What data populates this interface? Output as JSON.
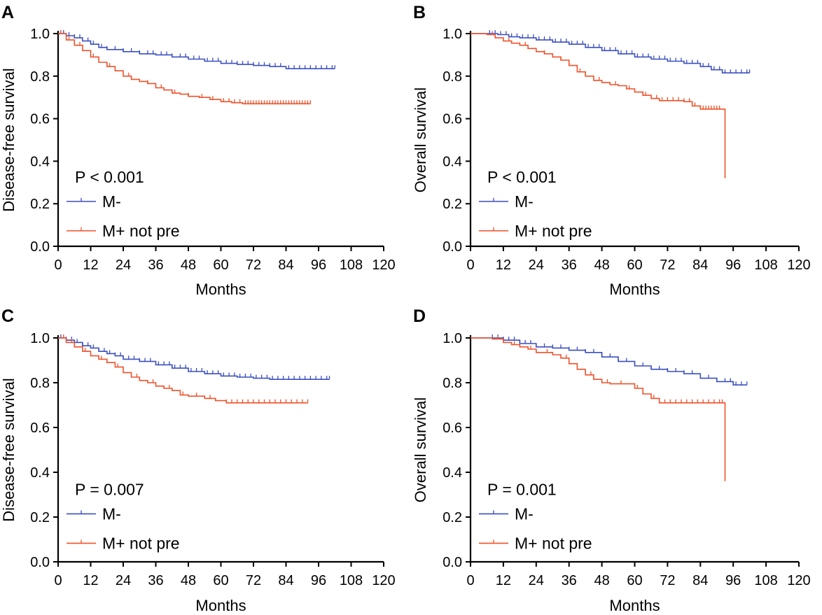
{
  "colors": {
    "m_minus": "#3b4fbf",
    "m_plus": "#f0512a",
    "axis": "#000000"
  },
  "chart_data": [
    {
      "panel": "A",
      "type": "line",
      "title": "",
      "xlabel": "Months",
      "ylabel": "Disease-free survival",
      "xlim": [
        0,
        120
      ],
      "ylim": [
        0.0,
        1.0
      ],
      "xticks": [
        "0",
        "12",
        "24",
        "36",
        "48",
        "60",
        "72",
        "84",
        "96",
        "108",
        "120"
      ],
      "yticks": [
        "0.0",
        "0.2",
        "0.4",
        "0.6",
        "0.8",
        "1.0"
      ],
      "pvalue": "P < 0.001",
      "legend": [
        "M-",
        "M+ not pre"
      ],
      "series": [
        {
          "name": "M-",
          "color": "#3b4fbf",
          "points": [
            [
              0,
              1.0
            ],
            [
              3,
              0.99
            ],
            [
              6,
              0.98
            ],
            [
              9,
              0.965
            ],
            [
              12,
              0.95
            ],
            [
              15,
              0.935
            ],
            [
              18,
              0.925
            ],
            [
              24,
              0.915
            ],
            [
              30,
              0.905
            ],
            [
              36,
              0.9
            ],
            [
              42,
              0.89
            ],
            [
              48,
              0.88
            ],
            [
              54,
              0.87
            ],
            [
              60,
              0.86
            ],
            [
              66,
              0.855
            ],
            [
              72,
              0.85
            ],
            [
              78,
              0.845
            ],
            [
              84,
              0.835
            ],
            [
              90,
              0.835
            ],
            [
              102,
              0.835
            ]
          ],
          "censor": [
            1,
            2,
            4,
            6,
            8,
            11,
            13,
            16,
            18,
            21,
            24,
            27,
            30,
            33,
            35,
            38,
            40,
            42,
            45,
            47,
            50,
            52,
            55,
            57,
            59,
            62,
            64,
            66,
            68,
            70,
            72,
            74,
            76,
            78,
            80,
            82,
            85,
            87,
            89,
            91,
            93,
            95,
            97,
            99,
            101,
            102
          ]
        },
        {
          "name": "M+ not pre",
          "color": "#f0512a",
          "points": [
            [
              0,
              1.0
            ],
            [
              3,
              0.97
            ],
            [
              6,
              0.945
            ],
            [
              9,
              0.92
            ],
            [
              12,
              0.89
            ],
            [
              15,
              0.865
            ],
            [
              18,
              0.845
            ],
            [
              21,
              0.825
            ],
            [
              24,
              0.8
            ],
            [
              27,
              0.785
            ],
            [
              30,
              0.775
            ],
            [
              33,
              0.765
            ],
            [
              36,
              0.745
            ],
            [
              39,
              0.735
            ],
            [
              42,
              0.72
            ],
            [
              45,
              0.715
            ],
            [
              48,
              0.705
            ],
            [
              52,
              0.7
            ],
            [
              56,
              0.69
            ],
            [
              60,
              0.68
            ],
            [
              64,
              0.675
            ],
            [
              68,
              0.67
            ],
            [
              93,
              0.67
            ]
          ],
          "censor": [
            1,
            4,
            8,
            13,
            19,
            26,
            33,
            38,
            43,
            48,
            53,
            57,
            61,
            63,
            65,
            67,
            69,
            70,
            71,
            72,
            73,
            74,
            75,
            76,
            77,
            78,
            79,
            80,
            81,
            82,
            83,
            84,
            85,
            86,
            87,
            88,
            89,
            90,
            91,
            92,
            93
          ]
        }
      ]
    },
    {
      "panel": "B",
      "type": "line",
      "title": "",
      "xlabel": "Months",
      "ylabel": "Overall survival",
      "xlim": [
        0,
        120
      ],
      "ylim": [
        0.0,
        1.0
      ],
      "xticks": [
        "0",
        "12",
        "24",
        "36",
        "48",
        "60",
        "72",
        "84",
        "96",
        "108",
        "120"
      ],
      "yticks": [
        "0.0",
        "0.2",
        "0.4",
        "0.6",
        "0.8",
        "1.0"
      ],
      "pvalue": "P < 0.001",
      "legend": [
        "M-",
        "M+ not pre"
      ],
      "series": [
        {
          "name": "M-",
          "color": "#3b4fbf",
          "points": [
            [
              0,
              1.0
            ],
            [
              6,
              1.0
            ],
            [
              10,
              0.995
            ],
            [
              14,
              0.985
            ],
            [
              18,
              0.98
            ],
            [
              24,
              0.97
            ],
            [
              30,
              0.96
            ],
            [
              36,
              0.95
            ],
            [
              42,
              0.935
            ],
            [
              48,
              0.92
            ],
            [
              54,
              0.905
            ],
            [
              60,
              0.89
            ],
            [
              66,
              0.88
            ],
            [
              72,
              0.87
            ],
            [
              78,
              0.86
            ],
            [
              84,
              0.845
            ],
            [
              88,
              0.83
            ],
            [
              92,
              0.815
            ],
            [
              102,
              0.815
            ]
          ],
          "censor": [
            7,
            9,
            11,
            13,
            15,
            17,
            19,
            21,
            23,
            25,
            27,
            29,
            31,
            33,
            35,
            37,
            39,
            41,
            43,
            45,
            47,
            49,
            51,
            53,
            55,
            57,
            59,
            61,
            63,
            65,
            67,
            69,
            71,
            73,
            75,
            77,
            79,
            81,
            83,
            85,
            87,
            89,
            91,
            93,
            95,
            97,
            99,
            101,
            102
          ]
        },
        {
          "name": "M+ not pre",
          "color": "#f0512a",
          "points": [
            [
              0,
              1.0
            ],
            [
              6,
              0.995
            ],
            [
              9,
              0.98
            ],
            [
              12,
              0.965
            ],
            [
              15,
              0.955
            ],
            [
              18,
              0.945
            ],
            [
              21,
              0.93
            ],
            [
              24,
              0.915
            ],
            [
              27,
              0.905
            ],
            [
              30,
              0.89
            ],
            [
              33,
              0.875
            ],
            [
              36,
              0.85
            ],
            [
              39,
              0.82
            ],
            [
              42,
              0.8
            ],
            [
              45,
              0.78
            ],
            [
              48,
              0.77
            ],
            [
              51,
              0.76
            ],
            [
              54,
              0.755
            ],
            [
              57,
              0.74
            ],
            [
              60,
              0.725
            ],
            [
              63,
              0.71
            ],
            [
              66,
              0.695
            ],
            [
              69,
              0.685
            ],
            [
              78,
              0.68
            ],
            [
              81,
              0.66
            ],
            [
              84,
              0.645
            ],
            [
              93,
              0.64
            ],
            [
              93,
              0.32
            ]
          ],
          "censor": [
            8,
            14,
            20,
            27,
            33,
            40,
            47,
            53,
            58,
            64,
            68,
            70,
            72,
            74,
            76,
            78,
            80,
            82,
            84,
            85,
            86,
            87,
            88,
            89,
            90,
            91
          ]
        }
      ]
    },
    {
      "panel": "C",
      "type": "line",
      "title": "",
      "xlabel": "Months",
      "ylabel": "Disease-free survival",
      "xlim": [
        0,
        120
      ],
      "ylim": [
        0.0,
        1.0
      ],
      "xticks": [
        "0",
        "12",
        "24",
        "36",
        "48",
        "60",
        "72",
        "84",
        "96",
        "108",
        "120"
      ],
      "yticks": [
        "0.0",
        "0.2",
        "0.4",
        "0.6",
        "0.8",
        "1.0"
      ],
      "pvalue": "P = 0.007",
      "legend": [
        "M-",
        "M+ not pre"
      ],
      "series": [
        {
          "name": "M-",
          "color": "#3b4fbf",
          "points": [
            [
              0,
              1.0
            ],
            [
              3,
              0.99
            ],
            [
              6,
              0.98
            ],
            [
              9,
              0.965
            ],
            [
              12,
              0.955
            ],
            [
              15,
              0.94
            ],
            [
              18,
              0.93
            ],
            [
              21,
              0.92
            ],
            [
              24,
              0.905
            ],
            [
              30,
              0.895
            ],
            [
              36,
              0.88
            ],
            [
              42,
              0.865
            ],
            [
              48,
              0.85
            ],
            [
              54,
              0.84
            ],
            [
              60,
              0.83
            ],
            [
              66,
              0.825
            ],
            [
              72,
              0.82
            ],
            [
              78,
              0.815
            ],
            [
              84,
              0.815
            ],
            [
              100,
              0.815
            ]
          ],
          "censor": [
            1,
            3,
            5,
            7,
            9,
            11,
            13,
            15,
            17,
            19,
            21,
            23,
            26,
            28,
            30,
            32,
            34,
            37,
            39,
            41,
            43,
            45,
            47,
            49,
            51,
            53,
            55,
            57,
            59,
            61,
            63,
            65,
            67,
            69,
            71,
            73,
            75,
            77,
            79,
            81,
            83,
            85,
            87,
            89,
            91,
            93,
            95,
            97,
            99,
            100
          ]
        },
        {
          "name": "M+ not pre",
          "color": "#f0512a",
          "points": [
            [
              0,
              1.0
            ],
            [
              3,
              0.98
            ],
            [
              6,
              0.96
            ],
            [
              9,
              0.94
            ],
            [
              12,
              0.92
            ],
            [
              15,
              0.905
            ],
            [
              18,
              0.89
            ],
            [
              21,
              0.87
            ],
            [
              24,
              0.845
            ],
            [
              27,
              0.825
            ],
            [
              30,
              0.81
            ],
            [
              33,
              0.8
            ],
            [
              36,
              0.785
            ],
            [
              39,
              0.775
            ],
            [
              42,
              0.765
            ],
            [
              45,
              0.745
            ],
            [
              48,
              0.74
            ],
            [
              54,
              0.73
            ],
            [
              58,
              0.72
            ],
            [
              62,
              0.71
            ],
            [
              92,
              0.71
            ]
          ],
          "censor": [
            2,
            5,
            10,
            16,
            22,
            29,
            35,
            41,
            46,
            51,
            56,
            62,
            64,
            66,
            68,
            70,
            72,
            74,
            76,
            78,
            80,
            82,
            84,
            86,
            88,
            90,
            92
          ]
        }
      ]
    },
    {
      "panel": "D",
      "type": "line",
      "title": "",
      "xlabel": "Months",
      "ylabel": "Overall survival",
      "xlim": [
        0,
        120
      ],
      "ylim": [
        0.0,
        1.0
      ],
      "xticks": [
        "0",
        "12",
        "24",
        "36",
        "48",
        "60",
        "72",
        "84",
        "96",
        "108",
        "120"
      ],
      "yticks": [
        "0.0",
        "0.2",
        "0.4",
        "0.6",
        "0.8",
        "1.0"
      ],
      "pvalue": "P = 0.001",
      "legend": [
        "M-",
        "M+ not pre"
      ],
      "series": [
        {
          "name": "M-",
          "color": "#3b4fbf",
          "points": [
            [
              0,
              1.0
            ],
            [
              8,
              1.0
            ],
            [
              12,
              0.99
            ],
            [
              18,
              0.975
            ],
            [
              24,
              0.96
            ],
            [
              30,
              0.955
            ],
            [
              36,
              0.945
            ],
            [
              42,
              0.935
            ],
            [
              48,
              0.915
            ],
            [
              54,
              0.895
            ],
            [
              60,
              0.875
            ],
            [
              66,
              0.86
            ],
            [
              72,
              0.85
            ],
            [
              78,
              0.84
            ],
            [
              84,
              0.82
            ],
            [
              90,
              0.805
            ],
            [
              96,
              0.79
            ],
            [
              101,
              0.79
            ]
          ],
          "censor": [
            8,
            10,
            12,
            14,
            16,
            18,
            20,
            22,
            24,
            27,
            30,
            33,
            36,
            39,
            42,
            45,
            48,
            51,
            54,
            57,
            60,
            63,
            66,
            69,
            72,
            75,
            78,
            81,
            84,
            87,
            90,
            93,
            95,
            97,
            99,
            101
          ]
        },
        {
          "name": "M+ not pre",
          "color": "#f0512a",
          "points": [
            [
              0,
              1.0
            ],
            [
              8,
              0.995
            ],
            [
              12,
              0.98
            ],
            [
              15,
              0.97
            ],
            [
              18,
              0.96
            ],
            [
              21,
              0.95
            ],
            [
              24,
              0.935
            ],
            [
              30,
              0.925
            ],
            [
              33,
              0.91
            ],
            [
              36,
              0.885
            ],
            [
              39,
              0.86
            ],
            [
              42,
              0.835
            ],
            [
              45,
              0.815
            ],
            [
              48,
              0.8
            ],
            [
              51,
              0.795
            ],
            [
              57,
              0.795
            ],
            [
              60,
              0.775
            ],
            [
              63,
              0.75
            ],
            [
              66,
              0.73
            ],
            [
              69,
              0.71
            ],
            [
              93,
              0.71
            ],
            [
              93,
              0.36
            ]
          ],
          "censor": [
            10,
            16,
            22,
            28,
            35,
            44,
            50,
            55,
            61,
            67,
            69,
            71,
            73,
            75,
            77,
            79,
            81,
            83,
            85,
            87,
            89,
            91,
            92
          ]
        }
      ]
    }
  ]
}
